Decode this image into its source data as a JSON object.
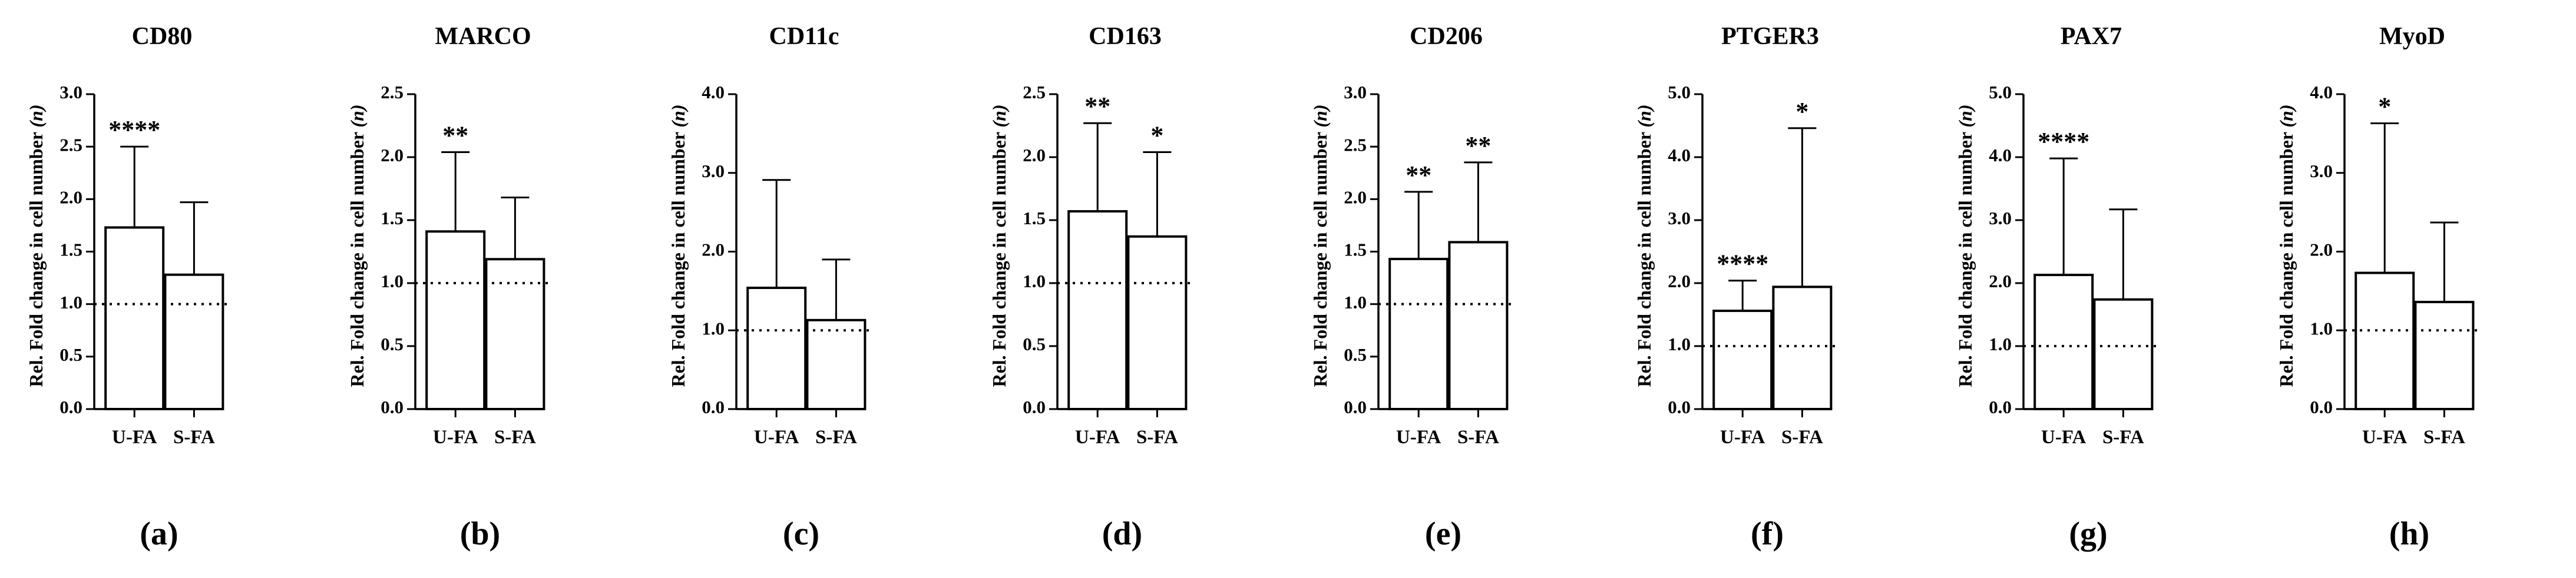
{
  "chart_data": [
    {
      "type": "bar",
      "panel_label": "(a)",
      "title": "CD80",
      "ylabel": "Rel. Fold change in cell number",
      "ylabel_unit": "(n)",
      "categories": [
        "U-FA",
        "S-FA"
      ],
      "values": [
        1.73,
        1.28
      ],
      "errors_upper": [
        2.5,
        1.97
      ],
      "significance": [
        "****",
        ""
      ],
      "reference_line": 1.0,
      "ylim": [
        0,
        3.0
      ],
      "yticks": [
        "0.0",
        "0.5",
        "1.0",
        "1.5",
        "2.0",
        "2.5",
        "3.0"
      ]
    },
    {
      "type": "bar",
      "panel_label": "(b)",
      "title": "MARCO",
      "ylabel": "Rel. Fold change in cell number",
      "ylabel_unit": "(n)",
      "categories": [
        "U-FA",
        "S-FA"
      ],
      "values": [
        1.41,
        1.19
      ],
      "errors_upper": [
        2.04,
        1.68
      ],
      "significance": [
        "**",
        ""
      ],
      "reference_line": 1.0,
      "ylim": [
        0,
        2.5
      ],
      "yticks": [
        "0.0",
        "0.5",
        "1.0",
        "1.5",
        "2.0",
        "2.5"
      ]
    },
    {
      "type": "bar",
      "panel_label": "(c)",
      "title": "CD11c",
      "ylabel": "Rel. Fold change in cell number",
      "ylabel_unit": "(n)",
      "categories": [
        "U-FA",
        "S-FA"
      ],
      "values": [
        1.54,
        1.13
      ],
      "errors_upper": [
        2.91,
        1.9
      ],
      "significance": [
        "",
        ""
      ],
      "reference_line": 1.0,
      "ylim": [
        0,
        4.0
      ],
      "yticks": [
        "0.0",
        "1.0",
        "2.0",
        "3.0",
        "4.0"
      ]
    },
    {
      "type": "bar",
      "panel_label": "(d)",
      "title": "CD163",
      "ylabel": "Rel. Fold change in cell number",
      "ylabel_unit": "(n)",
      "categories": [
        "U-FA",
        "S-FA"
      ],
      "values": [
        1.57,
        1.37
      ],
      "errors_upper": [
        2.27,
        2.04
      ],
      "significance": [
        "**",
        "*"
      ],
      "reference_line": 1.0,
      "ylim": [
        0,
        2.5
      ],
      "yticks": [
        "0.0",
        "0.5",
        "1.0",
        "1.5",
        "2.0",
        "2.5"
      ]
    },
    {
      "type": "bar",
      "panel_label": "(e)",
      "title": "CD206",
      "ylabel": "Rel. Fold change in cell number",
      "ylabel_unit": "(n)",
      "categories": [
        "U-FA",
        "S-FA"
      ],
      "values": [
        1.43,
        1.59
      ],
      "errors_upper": [
        2.07,
        2.35
      ],
      "significance": [
        "**",
        "**"
      ],
      "reference_line": 1.0,
      "ylim": [
        0,
        3.0
      ],
      "yticks": [
        "0.0",
        "0.5",
        "1.0",
        "1.5",
        "2.0",
        "2.5",
        "3.0"
      ]
    },
    {
      "type": "bar",
      "panel_label": "(f)",
      "title": "PTGER3",
      "ylabel": "Rel. Fold change in cell number",
      "ylabel_unit": "(n)",
      "categories": [
        "U-FA",
        "S-FA"
      ],
      "values": [
        1.56,
        1.94
      ],
      "errors_upper": [
        2.04,
        4.46
      ],
      "significance": [
        "****",
        "*"
      ],
      "reference_line": 1.0,
      "ylim": [
        0,
        5.0
      ],
      "yticks": [
        "0.0",
        "1.0",
        "2.0",
        "3.0",
        "4.0",
        "5.0"
      ]
    },
    {
      "type": "bar",
      "panel_label": "(g)",
      "title": "PAX7",
      "ylabel": "Rel. Fold change in cell number",
      "ylabel_unit": "(n)",
      "categories": [
        "U-FA",
        "S-FA"
      ],
      "values": [
        2.13,
        1.74
      ],
      "errors_upper": [
        3.98,
        3.17
      ],
      "significance": [
        "****",
        ""
      ],
      "reference_line": 1.0,
      "ylim": [
        0,
        5.0
      ],
      "yticks": [
        "0.0",
        "1.0",
        "2.0",
        "3.0",
        "4.0",
        "5.0"
      ]
    },
    {
      "type": "bar",
      "panel_label": "(h)",
      "title": "MyoD",
      "ylabel": "Rel. Fold change in cell number",
      "ylabel_unit": "(n)",
      "categories": [
        "U-FA",
        "S-FA"
      ],
      "values": [
        1.73,
        1.36
      ],
      "errors_upper": [
        3.63,
        2.37
      ],
      "significance": [
        "*",
        ""
      ],
      "reference_line": 1.0,
      "ylim": [
        0,
        4.0
      ],
      "yticks": [
        "0.0",
        "1.0",
        "2.0",
        "3.0",
        "4.0"
      ]
    }
  ]
}
